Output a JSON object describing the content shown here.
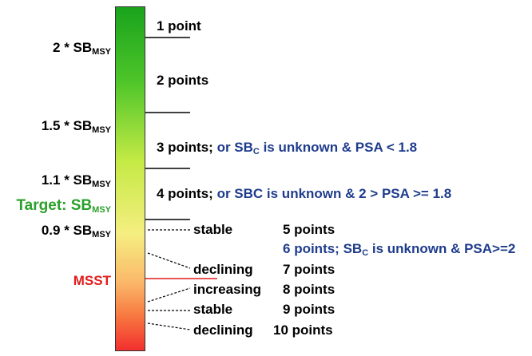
{
  "scale": {
    "left_labels": [
      {
        "prefix": "2 * SB",
        "sub": "MSY"
      },
      {
        "prefix": "1.5 * SB",
        "sub": "MSY"
      },
      {
        "prefix": "1.1 * SB",
        "sub": "MSY"
      },
      {
        "prefix": "Target: SB",
        "sub": "MSY"
      },
      {
        "prefix": "0.9 * SB",
        "sub": "MSY"
      },
      {
        "prefix": "MSST",
        "sub": ""
      }
    ],
    "colors": {
      "target": "#2aa02a",
      "msst": "#e21c1c",
      "note": "#1f3c8c"
    }
  },
  "bands": [
    {
      "text": "1 point",
      "note": ""
    },
    {
      "text": "2 points",
      "note": ""
    },
    {
      "text": "3 points;",
      "note_a": " or SB",
      "note_sub": "C",
      "note_b": " is unknown & PSA < 1.8"
    },
    {
      "text": "4 points;",
      "note": " or SBC is unknown & 2 > PSA >= 1.8"
    }
  ],
  "trend_rows": [
    {
      "trend": "stable",
      "points": "5 points"
    },
    {
      "trend": "",
      "points": "6",
      "note_a": " points; SB",
      "note_sub": "C",
      "note_b": " is unknown & PSA>=2"
    },
    {
      "trend": "declining",
      "points": "7 points"
    },
    {
      "trend": "increasing",
      "points": "8 points"
    },
    {
      "trend": "stable",
      "points": "9 points"
    },
    {
      "trend": "declining",
      "points": "10 points"
    }
  ]
}
